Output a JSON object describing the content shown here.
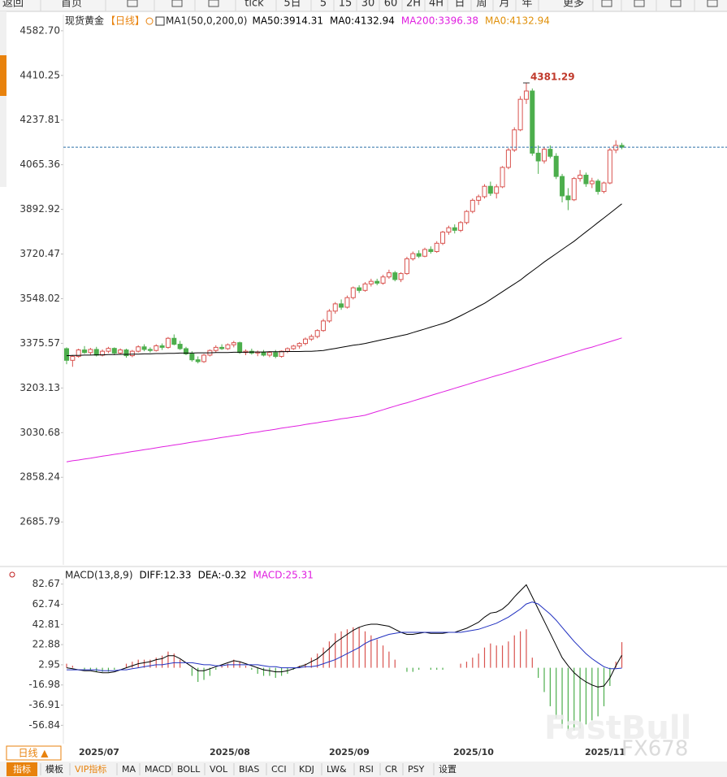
{
  "toolbar": [
    "返回",
    "首页",
    "tick",
    "5日",
    "5",
    "15",
    "30",
    "60",
    "2H",
    "4H",
    "日",
    "周",
    "月",
    "年",
    "更多"
  ],
  "chart_data": [
    {
      "type": "candlestick",
      "title": "现货黄金",
      "period": "【日线】",
      "indicator": "MA1(50,0,200,0)",
      "header": [
        {
          "text": "MA50:3914.31",
          "color": "#000000"
        },
        {
          "text": "MA0:4132.94",
          "color": "#000000"
        },
        {
          "text": "MA200:3396.38",
          "color": "#e020e0"
        },
        {
          "text": "MA0:4132.94",
          "color": "#e0900a"
        }
      ],
      "annotation": "4381.29",
      "up_color": "#d9534f",
      "down_color": "#4cae4c",
      "ylim": [
        2520,
        4645
      ],
      "yticks": [
        {
          "value": 4582.7,
          "label": "4582.70"
        },
        4410.25,
        4237.81,
        4065.36,
        3892.92,
        3720.47,
        3548.02,
        3375.57,
        3203.13,
        3030.68,
        2858.24,
        2685.79
      ],
      "candles": [
        [
          3355,
          3360,
          3295,
          3310
        ],
        [
          3310,
          3330,
          3285,
          3325
        ],
        [
          3325,
          3355,
          3320,
          3350
        ],
        [
          3350,
          3365,
          3335,
          3340
        ],
        [
          3340,
          3358,
          3332,
          3352
        ],
        [
          3352,
          3362,
          3325,
          3330
        ],
        [
          3330,
          3352,
          3325,
          3345
        ],
        [
          3345,
          3362,
          3338,
          3356
        ],
        [
          3356,
          3360,
          3330,
          3338
        ],
        [
          3338,
          3356,
          3332,
          3350
        ],
        [
          3350,
          3355,
          3320,
          3328
        ],
        [
          3328,
          3350,
          3322,
          3345
        ],
        [
          3345,
          3368,
          3340,
          3362
        ],
        [
          3362,
          3372,
          3345,
          3352
        ],
        [
          3352,
          3360,
          3340,
          3348
        ],
        [
          3348,
          3372,
          3344,
          3366
        ],
        [
          3366,
          3375,
          3350,
          3360
        ],
        [
          3360,
          3400,
          3355,
          3395
        ],
        [
          3395,
          3410,
          3368,
          3372
        ],
        [
          3372,
          3385,
          3350,
          3355
        ],
        [
          3355,
          3362,
          3330,
          3335
        ],
        [
          3335,
          3345,
          3305,
          3312
        ],
        [
          3312,
          3325,
          3298,
          3305
        ],
        [
          3305,
          3335,
          3300,
          3330
        ],
        [
          3330,
          3352,
          3325,
          3348
        ],
        [
          3348,
          3368,
          3340,
          3360
        ],
        [
          3360,
          3372,
          3350,
          3355
        ],
        [
          3355,
          3375,
          3350,
          3370
        ],
        [
          3370,
          3385,
          3360,
          3378
        ],
        [
          3378,
          3382,
          3335,
          3340
        ],
        [
          3340,
          3352,
          3330,
          3345
        ],
        [
          3345,
          3355,
          3332,
          3338
        ],
        [
          3338,
          3348,
          3326,
          3342
        ],
        [
          3342,
          3350,
          3325,
          3330
        ],
        [
          3330,
          3345,
          3322,
          3340
        ],
        [
          3340,
          3350,
          3318,
          3325
        ],
        [
          3325,
          3348,
          3320,
          3345
        ],
        [
          3345,
          3360,
          3338,
          3355
        ],
        [
          3355,
          3370,
          3350,
          3365
        ],
        [
          3365,
          3380,
          3355,
          3375
        ],
        [
          3375,
          3398,
          3368,
          3392
        ],
        [
          3392,
          3410,
          3385,
          3402
        ],
        [
          3402,
          3430,
          3395,
          3425
        ],
        [
          3425,
          3470,
          3420,
          3462
        ],
        [
          3462,
          3508,
          3455,
          3500
        ],
        [
          3500,
          3535,
          3490,
          3528
        ],
        [
          3528,
          3545,
          3505,
          3515
        ],
        [
          3515,
          3560,
          3510,
          3552
        ],
        [
          3552,
          3595,
          3545,
          3590
        ],
        [
          3590,
          3600,
          3570,
          3580
        ],
        [
          3580,
          3612,
          3575,
          3605
        ],
        [
          3605,
          3625,
          3595,
          3615
        ],
        [
          3615,
          3625,
          3600,
          3608
        ],
        [
          3608,
          3640,
          3602,
          3632
        ],
        [
          3632,
          3660,
          3625,
          3648
        ],
        [
          3648,
          3655,
          3615,
          3622
        ],
        [
          3622,
          3650,
          3612,
          3645
        ],
        [
          3645,
          3710,
          3640,
          3702
        ],
        [
          3702,
          3730,
          3695,
          3722
        ],
        [
          3722,
          3735,
          3705,
          3712
        ],
        [
          3712,
          3745,
          3708,
          3738
        ],
        [
          3738,
          3750,
          3722,
          3730
        ],
        [
          3730,
          3770,
          3725,
          3762
        ],
        [
          3762,
          3810,
          3755,
          3805
        ],
        [
          3805,
          3830,
          3795,
          3822
        ],
        [
          3822,
          3835,
          3800,
          3812
        ],
        [
          3812,
          3848,
          3805,
          3842
        ],
        [
          3842,
          3890,
          3835,
          3885
        ],
        [
          3885,
          3935,
          3878,
          3928
        ],
        [
          3928,
          3950,
          3910,
          3942
        ],
        [
          3942,
          3990,
          3935,
          3982
        ],
        [
          3982,
          4000,
          3945,
          3955
        ],
        [
          3955,
          3990,
          3935,
          3980
        ],
        [
          3980,
          4060,
          3975,
          4055
        ],
        [
          4055,
          4130,
          4048,
          4122
        ],
        [
          4122,
          4210,
          4115,
          4200
        ],
        [
          4200,
          4330,
          4195,
          4318
        ],
        [
          4318,
          4381.29,
          4300,
          4350
        ],
        [
          4350,
          4360,
          4100,
          4110
        ],
        [
          4110,
          4140,
          4030,
          4080
        ],
        [
          4080,
          4135,
          4070,
          4125
        ],
        [
          4125,
          4140,
          4090,
          4098
        ],
        [
          4098,
          4110,
          4010,
          4020
        ],
        [
          4020,
          4030,
          3920,
          3945
        ],
        [
          3945,
          3975,
          3890,
          3930
        ],
        [
          3930,
          4018,
          3925,
          4012
        ],
        [
          4012,
          4045,
          4000,
          4025
        ],
        [
          4025,
          4035,
          3980,
          3992
        ],
        [
          3992,
          4015,
          3975,
          4002
        ],
        [
          4002,
          4010,
          3950,
          3962
        ],
        [
          3962,
          4000,
          3955,
          3995
        ],
        [
          3995,
          4130,
          3990,
          4122
        ],
        [
          4122,
          4160,
          4110,
          4140
        ],
        [
          4140,
          4150,
          4125,
          4132.94
        ]
      ],
      "series": [
        {
          "name": "MA50",
          "color": "#000000",
          "values": [
            3328,
            3329,
            3329,
            3330,
            3330,
            3331,
            3331,
            3332,
            3332,
            3333,
            3333,
            3334,
            3334,
            3335,
            3335,
            3336,
            3336,
            3337,
            3337,
            3338,
            3338,
            3338,
            3339,
            3339,
            3339,
            3340,
            3340,
            3340,
            3341,
            3341,
            3341,
            3342,
            3342,
            3342,
            3343,
            3343,
            3343,
            3344,
            3344,
            3344,
            3345,
            3345,
            3346,
            3348,
            3352,
            3356,
            3360,
            3364,
            3368,
            3371,
            3375,
            3380,
            3385,
            3390,
            3395,
            3400,
            3405,
            3410,
            3417,
            3424,
            3431,
            3438,
            3445,
            3452,
            3460,
            3471,
            3482,
            3494,
            3506,
            3518,
            3530,
            3545,
            3560,
            3575,
            3590,
            3605,
            3620,
            3638,
            3655,
            3672,
            3690,
            3706,
            3722,
            3738,
            3754,
            3770,
            3788,
            3806,
            3824,
            3842,
            3860,
            3878,
            3896,
            3914.31
          ]
        },
        {
          "name": "MA200",
          "color": "#e020e0",
          "values": [
            2918,
            2922,
            2925,
            2929,
            2932,
            2936,
            2940,
            2943,
            2947,
            2950,
            2954,
            2958,
            2961,
            2965,
            2968,
            2972,
            2976,
            2979,
            2983,
            2986,
            2990,
            2994,
            2997,
            3001,
            3004,
            3008,
            3012,
            3015,
            3019,
            3022,
            3026,
            3030,
            3033,
            3037,
            3040,
            3044,
            3048,
            3051,
            3055,
            3058,
            3062,
            3066,
            3069,
            3073,
            3076,
            3080,
            3084,
            3087,
            3091,
            3094,
            3098,
            3105,
            3112,
            3119,
            3126,
            3133,
            3140,
            3146,
            3153,
            3160,
            3167,
            3174,
            3181,
            3188,
            3195,
            3202,
            3209,
            3216,
            3223,
            3230,
            3237,
            3244,
            3251,
            3257,
            3264,
            3271,
            3278,
            3285,
            3292,
            3299,
            3306,
            3313,
            3320,
            3327,
            3334,
            3341,
            3348,
            3355,
            3361,
            3368,
            3375,
            3382,
            3389,
            3396.38
          ]
        }
      ]
    },
    {
      "type": "macd",
      "title": "MACD(13,8,9)",
      "header": [
        {
          "text": "DIFF:12.33",
          "color": "#000000"
        },
        {
          "text": "DEA:-0.32",
          "color": "#000000"
        },
        {
          "text": "MACD:25.31",
          "color": "#e020e0"
        }
      ],
      "up_color": "#d9534f",
      "down_color": "#4cae4c",
      "ylim": [
        -75,
        88
      ],
      "yticks": [
        82.67,
        62.74,
        42.81,
        22.88,
        2.95,
        -16.98,
        -36.91,
        -56.84
      ],
      "series": [
        {
          "name": "DIFF",
          "color": "#000000",
          "values": [
            0,
            -1,
            -2,
            -3,
            -3,
            -4,
            -5,
            -5,
            -4,
            -2,
            0,
            2,
            4,
            5,
            6,
            8,
            9,
            12,
            12,
            9,
            5,
            1,
            -3,
            -3,
            -1,
            1,
            3,
            5,
            7,
            6,
            4,
            2,
            0,
            -2,
            -3,
            -4,
            -4,
            -3,
            -1,
            1,
            3,
            6,
            9,
            14,
            19,
            25,
            29,
            33,
            37,
            40,
            42,
            43,
            43,
            42,
            41,
            38,
            35,
            33,
            33,
            34,
            35,
            34,
            34,
            34,
            35,
            35,
            37,
            39,
            42,
            45,
            50,
            54,
            55,
            58,
            63,
            70,
            76,
            82,
            70,
            58,
            46,
            34,
            22,
            10,
            2,
            -5,
            -10,
            -14,
            -17,
            -19,
            -18,
            -10,
            2,
            12.33
          ]
        },
        {
          "name": "DEA",
          "color": "#2030c0",
          "values": [
            -2,
            -2,
            -2,
            -2,
            -2,
            -2,
            -3,
            -3,
            -3,
            -2,
            -2,
            -1,
            0,
            1,
            2,
            3,
            3,
            4,
            5,
            5,
            5,
            5,
            4,
            3,
            3,
            2,
            2,
            3,
            3,
            3,
            3,
            3,
            3,
            2,
            1,
            1,
            0,
            0,
            0,
            0,
            1,
            1,
            2,
            4,
            6,
            8,
            11,
            14,
            17,
            20,
            24,
            27,
            29,
            31,
            33,
            34,
            35,
            35,
            35,
            35,
            35,
            35,
            35,
            35,
            35,
            35,
            35,
            36,
            37,
            38,
            40,
            42,
            44,
            47,
            50,
            54,
            58,
            63,
            65,
            63,
            58,
            53,
            47,
            40,
            33,
            26,
            20,
            14,
            9,
            5,
            1,
            -1,
            -1,
            -0.32
          ]
        }
      ],
      "histogram": [
        4,
        2,
        0,
        -2,
        -2,
        -4,
        -4,
        -4,
        -2,
        0,
        4,
        6,
        8,
        8,
        8,
        10,
        12,
        16,
        14,
        8,
        0,
        -8,
        -14,
        -12,
        -8,
        -2,
        2,
        4,
        8,
        6,
        2,
        -2,
        -6,
        -8,
        -8,
        -10,
        -8,
        -6,
        -2,
        2,
        4,
        10,
        14,
        20,
        26,
        34,
        36,
        38,
        40,
        40,
        36,
        32,
        28,
        22,
        16,
        8,
        0,
        -4,
        -4,
        -2,
        0,
        -2,
        -2,
        -2,
        0,
        0,
        4,
        6,
        10,
        14,
        20,
        24,
        22,
        22,
        26,
        32,
        36,
        38,
        10,
        -10,
        -24,
        -38,
        -50,
        -60,
        -62,
        -62,
        -60,
        -56,
        -52,
        -48,
        -38,
        -18,
        6,
        25.31
      ]
    }
  ],
  "x_labels": [
    "2025/07",
    "2025/08",
    "2025/09",
    "2025/10",
    "2025/11"
  ],
  "period_button": "日线 ▲",
  "tabs": [
    "指标",
    "模板",
    "VIP指标",
    "MA",
    "MACD",
    "BOLL",
    "VOL",
    "BIAS",
    "CCI",
    "KDJ",
    "LW&",
    "RSI",
    "CR",
    "PSY",
    "设置"
  ],
  "watermark": [
    "FastBull",
    "FX678"
  ]
}
